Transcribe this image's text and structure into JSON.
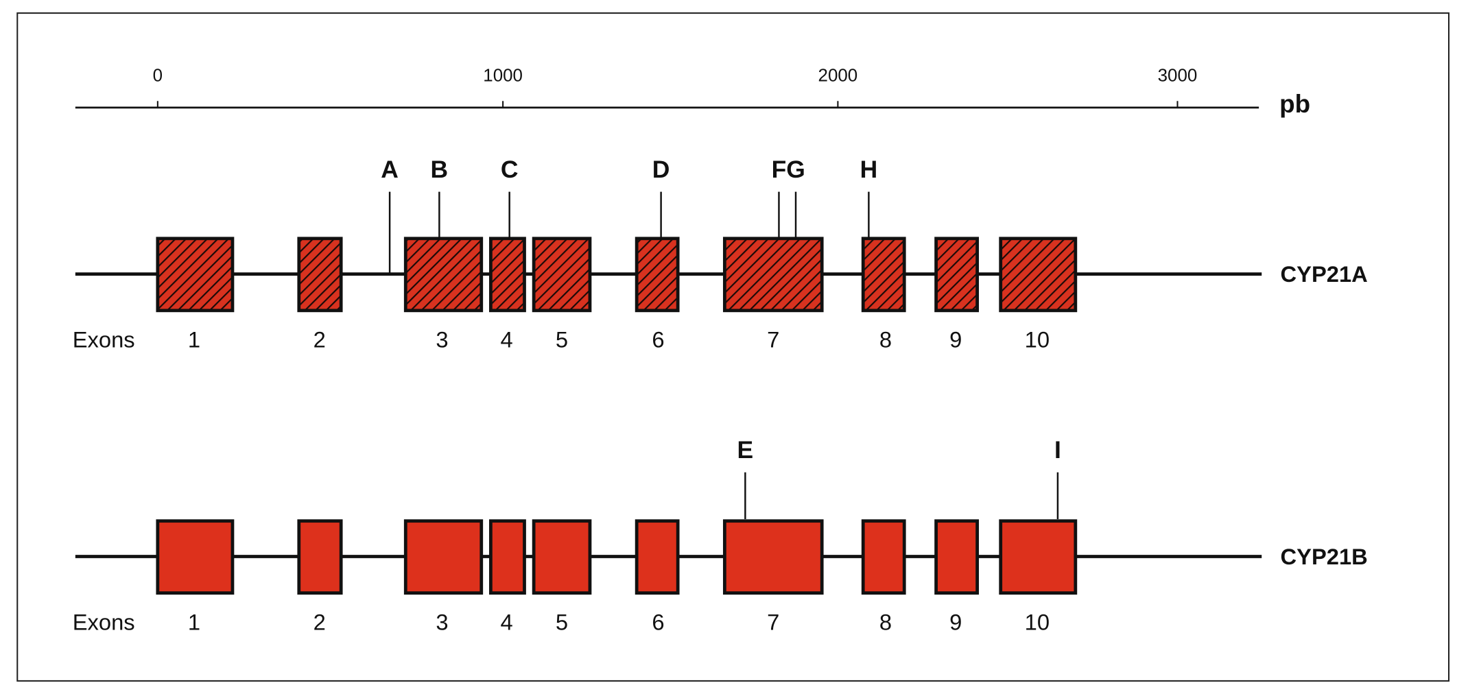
{
  "scale": {
    "ticks": [
      "0",
      "1000",
      "2000",
      "3000"
    ],
    "unit": "pb"
  },
  "genes": [
    {
      "name": "CYP21A",
      "exon_label": "Exons",
      "exons": [
        "1",
        "2",
        "3",
        "4",
        "5",
        "6",
        "7",
        "8",
        "9",
        "10"
      ],
      "markers": [
        "A",
        "B",
        "C",
        "D",
        "F",
        "G",
        "H"
      ]
    },
    {
      "name": "CYP21B",
      "exon_label": "Exons",
      "exons": [
        "1",
        "2",
        "3",
        "4",
        "5",
        "6",
        "7",
        "8",
        "9",
        "10"
      ],
      "markers": [
        "E",
        "I"
      ]
    }
  ]
}
